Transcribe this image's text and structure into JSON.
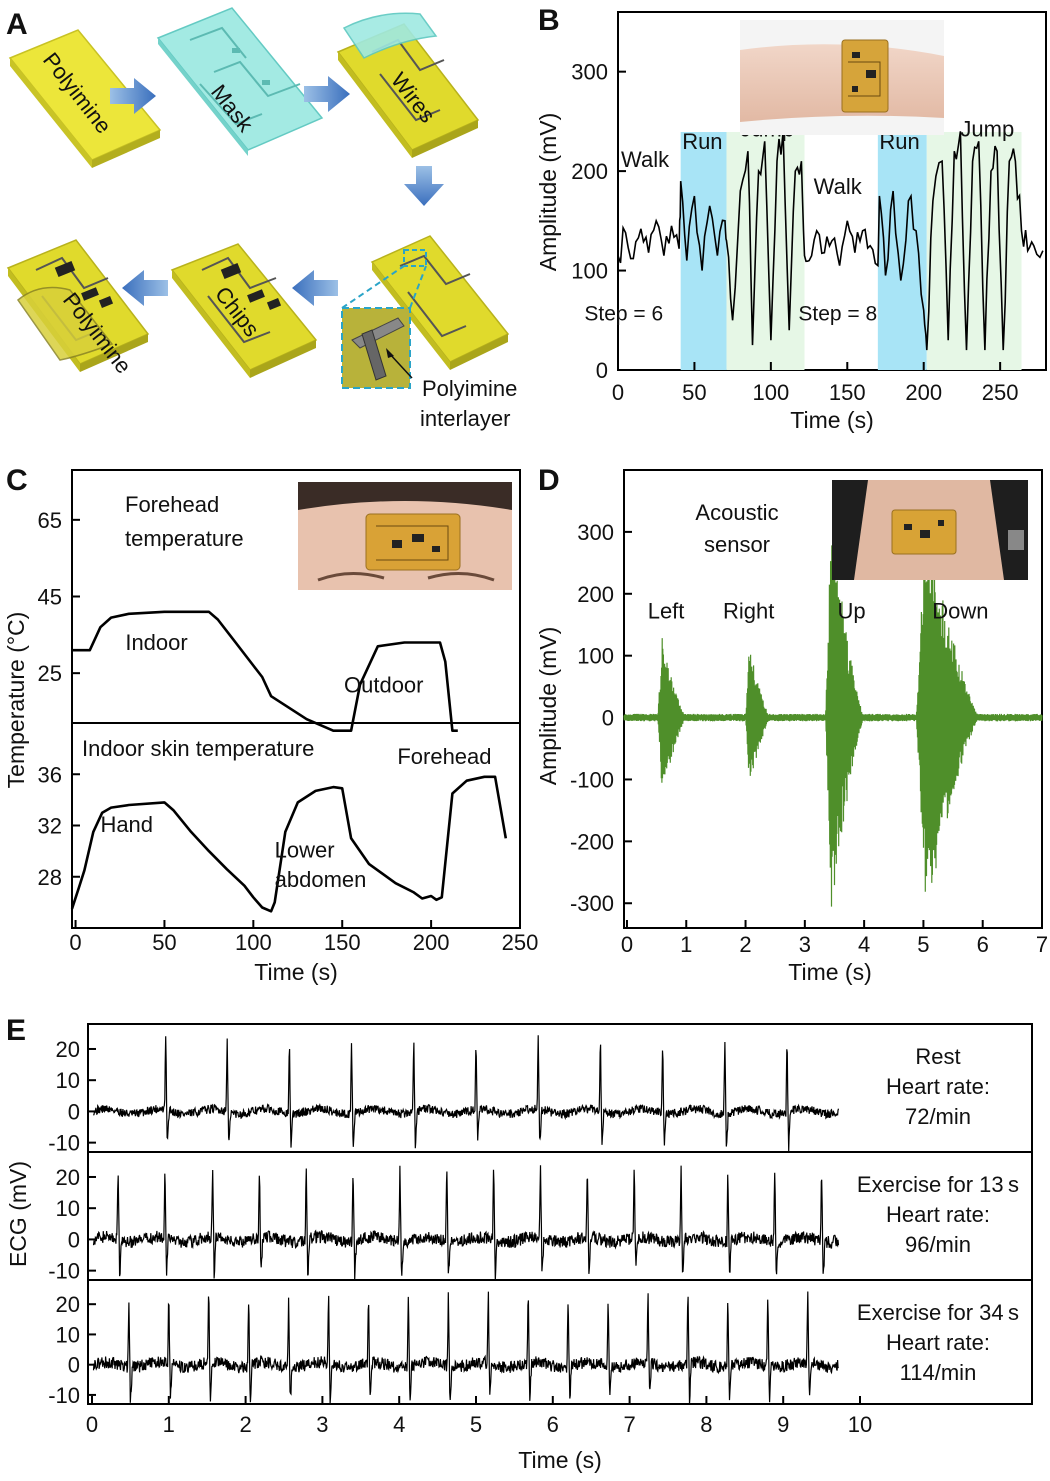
{
  "panel_labels": [
    "A",
    "B",
    "C",
    "D",
    "E"
  ],
  "fabrication": {
    "steps": [
      "Polyimine",
      "Mask",
      "Wires",
      "Chips",
      "Polyimine"
    ],
    "callout": [
      "Polyimine",
      "interlayer"
    ],
    "colors": {
      "substrate": "#e8e63a",
      "mask": "#8ee8e0",
      "arrow": "#4a7fc4",
      "chip": "#222222"
    }
  },
  "photos": {
    "wrist": "wrist-photo",
    "forehead": "forehead-photo",
    "throat": "throat-photo"
  },
  "chart_data": [
    {
      "id": "B",
      "type": "line",
      "xlabel": "Time (s)",
      "ylabel": "Amplitude (mV)",
      "xlim": [
        0,
        280
      ],
      "ylim": [
        0,
        360
      ],
      "xticks": [
        0,
        50,
        100,
        150,
        200,
        250
      ],
      "yticks": [
        0,
        100,
        200,
        300
      ],
      "line_color": "#000000",
      "regions": [
        {
          "label": "Run",
          "x0": 41,
          "x1": 71,
          "color": "#a8e4f6"
        },
        {
          "label": "Jump",
          "x0": 71,
          "x1": 122,
          "color": "#e6f7e6"
        },
        {
          "label": "Run",
          "x0": 170,
          "x1": 202,
          "color": "#a8e4f6"
        },
        {
          "label": "Jump",
          "x0": 202,
          "x1": 264,
          "color": "#e6f7e6"
        }
      ],
      "annotations": [
        {
          "text": "Walk",
          "x": 2,
          "y": 204
        },
        {
          "text": "Run",
          "x": 42,
          "y": 222
        },
        {
          "text": "Jump",
          "x": 80,
          "y": 235
        },
        {
          "text": "Walk",
          "x": 128,
          "y": 177
        },
        {
          "text": "Run",
          "x": 171,
          "y": 222
        },
        {
          "text": "Jump",
          "x": 224,
          "y": 235
        },
        {
          "text": "Step = 6",
          "x": -22,
          "y": 50
        },
        {
          "text": "Step = 8",
          "x": 118,
          "y": 50
        }
      ],
      "series": [
        {
          "x": [
            0,
            5,
            10,
            15,
            20,
            25,
            30,
            35,
            40,
            41,
            45,
            50,
            55,
            60,
            65,
            70,
            71,
            75,
            80,
            85,
            88,
            92,
            96,
            100,
            104,
            108,
            112,
            116,
            120,
            122,
            125,
            130,
            135,
            140,
            145,
            150,
            155,
            160,
            165,
            170,
            171,
            175,
            180,
            185,
            190,
            195,
            200,
            202,
            206,
            212,
            216,
            220,
            224,
            228,
            232,
            236,
            240,
            244,
            248,
            252,
            256,
            260,
            264,
            268,
            272,
            278
          ],
          "y": [
            115,
            138,
            112,
            142,
            118,
            150,
            115,
            145,
            122,
            190,
            110,
            175,
            100,
            165,
            115,
            150,
            130,
            50,
            180,
            220,
            25,
            200,
            230,
            30,
            210,
            240,
            40,
            200,
            210,
            115,
            110,
            140,
            118,
            130,
            105,
            150,
            118,
            140,
            125,
            105,
            175,
            95,
            180,
            90,
            170,
            140,
            60,
            20,
            170,
            210,
            30,
            220,
            240,
            20,
            210,
            230,
            20,
            200,
            220,
            20,
            210,
            210,
            140,
            120,
            125,
            120
          ]
        }
      ]
    },
    {
      "id": "C-top",
      "type": "line",
      "title": "Forehead temperature",
      "xlim": [
        -2,
        250
      ],
      "ylim": [
        12,
        78
      ],
      "yticks": [
        25,
        45,
        65
      ],
      "line_color": "#000000",
      "annotations": [
        {
          "text": "Indoor",
          "x": 28,
          "y": 31
        },
        {
          "text": "Outdoor",
          "x": 151,
          "y": 20
        }
      ],
      "series": [
        {
          "x": [
            -2,
            8,
            14,
            20,
            30,
            50,
            75,
            80,
            90,
            100,
            105,
            110,
            120,
            130,
            140,
            145,
            150,
            155,
            160,
            170,
            185,
            205,
            208,
            212,
            215
          ],
          "y": [
            31,
            31,
            37,
            39.5,
            40.5,
            41,
            41,
            39,
            33,
            27,
            24,
            19,
            16,
            13,
            11,
            10,
            10,
            10,
            22,
            32,
            33,
            33,
            28,
            10,
            10
          ]
        }
      ]
    },
    {
      "id": "C-bottom",
      "type": "line",
      "title": "Indoor skin temperature",
      "xlabel": "Time (s)",
      "ylabel": "Temperature (°C)",
      "xlim": [
        -2,
        250
      ],
      "ylim": [
        24,
        40
      ],
      "xticks": [
        0,
        50,
        100,
        150,
        200,
        250
      ],
      "yticks": [
        28,
        32,
        36
      ],
      "line_color": "#000000",
      "annotations": [
        {
          "text": "Hand",
          "x": 14,
          "y": 31.5
        },
        {
          "text": "Lower",
          "x": 112,
          "y": 29.5
        },
        {
          "text": "abdomen",
          "x": 112,
          "y": 27.2
        },
        {
          "text": "Forehead",
          "x": 181,
          "y": 36.8
        }
      ],
      "series": [
        {
          "x": [
            -2,
            2,
            5,
            10,
            15,
            20,
            30,
            50,
            55,
            65,
            75,
            85,
            95,
            100,
            105,
            110,
            112,
            118,
            125,
            135,
            145,
            150,
            155,
            165,
            180,
            190,
            195,
            200,
            203,
            206,
            212,
            220,
            230,
            236,
            242
          ],
          "y": [
            25.5,
            27.2,
            28.5,
            31.5,
            33,
            33.4,
            33.6,
            33.8,
            33.2,
            31.5,
            30,
            28.6,
            27.3,
            26.4,
            25.6,
            25.3,
            26,
            31.5,
            33.8,
            34.7,
            35,
            34.9,
            31,
            29,
            27.5,
            26.8,
            26.3,
            26.5,
            26.2,
            26.4,
            34.5,
            35.5,
            35.8,
            35.8,
            31
          ]
        }
      ]
    },
    {
      "id": "D",
      "type": "line",
      "title": "Acoustic sensor",
      "xlabel": "Time (s)",
      "ylabel": "Amplitude (mV)",
      "xlim": [
        -0.05,
        7
      ],
      "ylim": [
        -340,
        400
      ],
      "xticks": [
        0,
        1,
        2,
        3,
        4,
        5,
        6,
        7
      ],
      "yticks": [
        -300,
        -200,
        -100,
        0,
        100,
        200,
        300
      ],
      "line_color": "#4f8f2a",
      "annotations": [
        {
          "text": "Left",
          "x": 0.35,
          "y": 160
        },
        {
          "text": "Right",
          "x": 1.62,
          "y": 160
        },
        {
          "text": "Up",
          "x": 3.55,
          "y": 160
        },
        {
          "text": "Down",
          "x": 5.15,
          "y": 160
        }
      ],
      "bursts": [
        {
          "label": "Left",
          "t_start": 0.52,
          "t_end": 1.0,
          "peak_pos": 130,
          "peak_neg": -155
        },
        {
          "label": "Right",
          "t_start": 2.0,
          "t_end": 2.42,
          "peak_pos": 115,
          "peak_neg": -100
        },
        {
          "label": "Up",
          "t_start": 3.35,
          "t_end": 4.0,
          "peak_pos": 330,
          "peak_neg": -330
        },
        {
          "label": "Down",
          "t_start": 4.88,
          "t_end": 5.95,
          "peak_pos": 320,
          "peak_neg": -320
        }
      ]
    },
    {
      "id": "E",
      "type": "line",
      "xlabel": "Time (s)",
      "ylabel": "ECG (mV)",
      "xlim": [
        0,
        10
      ],
      "xticks": [
        0,
        1,
        2,
        3,
        4,
        5,
        6,
        7,
        8,
        9,
        10
      ],
      "yticks": [
        -10,
        0,
        10,
        20
      ],
      "ylim": [
        -13,
        28
      ],
      "line_color": "#000000",
      "rows": [
        {
          "labels": [
            "Rest",
            "Heart rate:",
            "72/min"
          ],
          "heart_rate": 72,
          "peaks": [
            0.96,
            1.76,
            2.57,
            3.38,
            4.19,
            5.0,
            5.81,
            6.62,
            7.43,
            8.24,
            9.05
          ]
        },
        {
          "labels": [
            "Exercise for 13 s",
            "Heart rate:",
            "96/min"
          ],
          "heart_rate": 96,
          "peaks": [
            0.34,
            0.95,
            1.57,
            2.18,
            2.79,
            3.4,
            4.01,
            4.62,
            5.23,
            5.84,
            6.45,
            7.06,
            7.67,
            8.28,
            8.89,
            9.5
          ]
        },
        {
          "labels": [
            "Exercise for 34 s",
            "Heart rate:",
            "114/min"
          ],
          "heart_rate": 114,
          "peaks": [
            0.48,
            1.0,
            1.52,
            2.04,
            2.56,
            3.08,
            3.6,
            4.12,
            4.64,
            5.16,
            5.68,
            6.2,
            6.72,
            7.24,
            7.76,
            8.28,
            8.8,
            9.32
          ]
        }
      ]
    }
  ]
}
